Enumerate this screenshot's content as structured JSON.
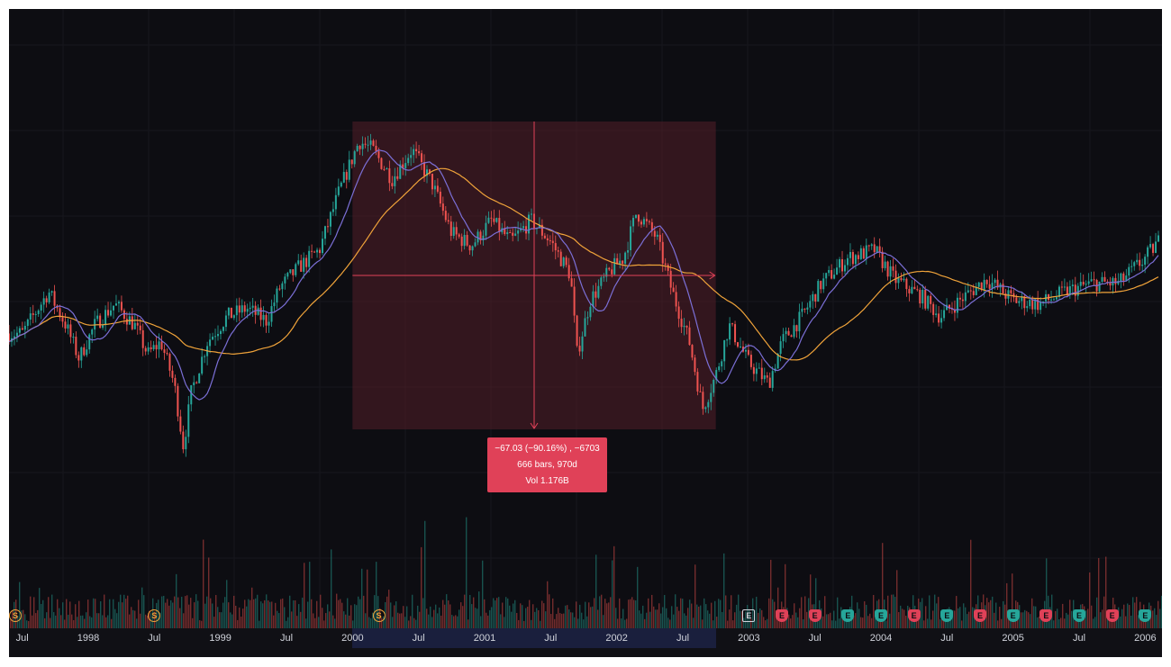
{
  "chart_data": {
    "type": "candlestick",
    "x_axis_ticks": [
      "Jul",
      "1998",
      "Jul",
      "1999",
      "Jul",
      "2000",
      "Jul",
      "2001",
      "Jul",
      "2002",
      "Jul",
      "2003",
      "Jul",
      "2004",
      "Jul",
      "2005",
      "Jul",
      "2006"
    ],
    "highlighted_range": {
      "start": "2000",
      "end": "2002-09",
      "direction": "down"
    },
    "price_series_approx": [
      {
        "date": "1997.5",
        "close": 62
      },
      {
        "date": "1997.7",
        "close": 72
      },
      {
        "date": "1997.83",
        "close": 64
      },
      {
        "date": "1997.93",
        "close": 56
      },
      {
        "date": "1998.05",
        "close": 64
      },
      {
        "date": "1998.2",
        "close": 69
      },
      {
        "date": "1998.35",
        "close": 64
      },
      {
        "date": "1998.45",
        "close": 57
      },
      {
        "date": "1998.55",
        "close": 60
      },
      {
        "date": "1998.65",
        "close": 50
      },
      {
        "date": "1998.72",
        "close": 35
      },
      {
        "date": "1998.78",
        "close": 48
      },
      {
        "date": "1998.9",
        "close": 60
      },
      {
        "date": "1999.05",
        "close": 66
      },
      {
        "date": "1999.2",
        "close": 68
      },
      {
        "date": "1999.35",
        "close": 65
      },
      {
        "date": "1999.45",
        "close": 73
      },
      {
        "date": "1999.6",
        "close": 78
      },
      {
        "date": "1999.75",
        "close": 82
      },
      {
        "date": "1999.9",
        "close": 96
      },
      {
        "date": "2000.05",
        "close": 108
      },
      {
        "date": "2000.15",
        "close": 106
      },
      {
        "date": "2000.3",
        "close": 99
      },
      {
        "date": "2000.45",
        "close": 106
      },
      {
        "date": "2000.6",
        "close": 98
      },
      {
        "date": "2000.75",
        "close": 86
      },
      {
        "date": "2000.9",
        "close": 83
      },
      {
        "date": "2001.05",
        "close": 89
      },
      {
        "date": "2001.2",
        "close": 84
      },
      {
        "date": "2001.35",
        "close": 89
      },
      {
        "date": "2001.5",
        "close": 84
      },
      {
        "date": "2001.65",
        "close": 76
      },
      {
        "date": "2001.7",
        "close": 57
      },
      {
        "date": "2001.8",
        "close": 70
      },
      {
        "date": "2001.95",
        "close": 77
      },
      {
        "date": "2002.05",
        "close": 80
      },
      {
        "date": "2002.15",
        "close": 91
      },
      {
        "date": "2002.3",
        "close": 85
      },
      {
        "date": "2002.42",
        "close": 72
      },
      {
        "date": "2002.55",
        "close": 60
      },
      {
        "date": "2002.65",
        "close": 44
      },
      {
        "date": "2002.75",
        "close": 52
      },
      {
        "date": "2002.85",
        "close": 64
      },
      {
        "date": "2003.0",
        "close": 55
      },
      {
        "date": "2003.15",
        "close": 50
      },
      {
        "date": "2003.25",
        "close": 60
      },
      {
        "date": "2003.4",
        "close": 66
      },
      {
        "date": "2003.55",
        "close": 74
      },
      {
        "date": "2003.75",
        "close": 80
      },
      {
        "date": "2003.95",
        "close": 82
      },
      {
        "date": "2004.1",
        "close": 75
      },
      {
        "date": "2004.3",
        "close": 71
      },
      {
        "date": "2004.45",
        "close": 66
      },
      {
        "date": "2004.6",
        "close": 70
      },
      {
        "date": "2004.8",
        "close": 75
      },
      {
        "date": "2005.0",
        "close": 70
      },
      {
        "date": "2005.2",
        "close": 69
      },
      {
        "date": "2005.4",
        "close": 72
      },
      {
        "date": "2005.6",
        "close": 74
      },
      {
        "date": "2005.8",
        "close": 74
      },
      {
        "date": "2006.0",
        "close": 80
      },
      {
        "date": "2006.1",
        "close": 84
      }
    ],
    "annotations": {
      "measure_line1": "−67.03 (−90.16%) , −6703",
      "measure_line2": "666 bars, 970d",
      "measure_line3": "Vol 1.176B"
    },
    "event_markers": [
      {
        "date": "1997.3",
        "kind": "split",
        "label": "S"
      },
      {
        "date": "1998.5",
        "kind": "split",
        "label": "S"
      },
      {
        "date": "2000.2",
        "kind": "split",
        "label": "S"
      },
      {
        "date": "2003.0",
        "kind": "earnings-neutral",
        "label": "E"
      },
      {
        "date": "2003.25",
        "kind": "earnings-negative",
        "label": "E"
      },
      {
        "date": "2003.5",
        "kind": "earnings-negative",
        "label": "E"
      },
      {
        "date": "2003.75",
        "kind": "earnings-positive",
        "label": "E"
      },
      {
        "date": "2004.0",
        "kind": "earnings-positive",
        "label": "E"
      },
      {
        "date": "2004.25",
        "kind": "earnings-negative",
        "label": "E"
      },
      {
        "date": "2004.5",
        "kind": "earnings-positive",
        "label": "E"
      },
      {
        "date": "2004.75",
        "kind": "earnings-negative",
        "label": "E"
      },
      {
        "date": "2005.0",
        "kind": "earnings-positive",
        "label": "E"
      },
      {
        "date": "2005.25",
        "kind": "earnings-negative",
        "label": "E"
      },
      {
        "date": "2005.5",
        "kind": "earnings-positive",
        "label": "E"
      },
      {
        "date": "2005.75",
        "kind": "earnings-negative",
        "label": "E"
      },
      {
        "date": "2006.0",
        "kind": "earnings-positive",
        "label": "E"
      }
    ],
    "colors": {
      "background": "#0d0d12",
      "candle_up": "#26a69a",
      "candle_down": "#ef5350",
      "ma_fast": "#7b6fd6",
      "ma_slow": "#f0a33a",
      "measure_fill": "#5a1f2a",
      "measure_line": "#e04158",
      "earnings_positive": "#26a69a",
      "earnings_negative": "#e04158",
      "earnings_neutral": "#d1d4dc"
    },
    "grid": true,
    "legend": "none"
  }
}
